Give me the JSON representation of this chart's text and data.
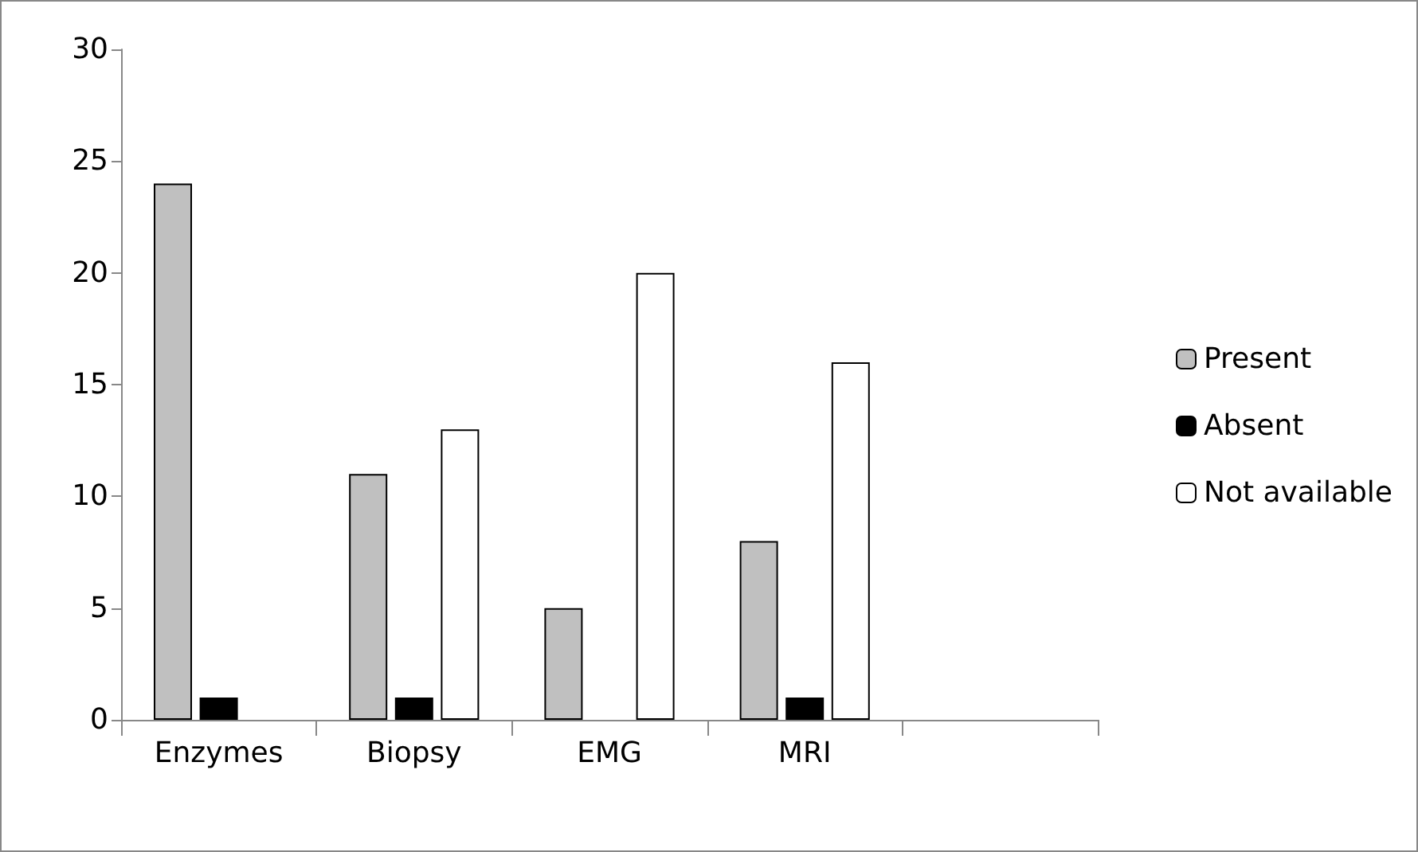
{
  "chart_data": {
    "type": "bar",
    "categories": [
      "Enzymes",
      "Biopsy",
      "EMG",
      "MRI",
      null
    ],
    "series": [
      {
        "name": "Present",
        "color": "#c0c0c0",
        "values": [
          24,
          11,
          5,
          8,
          null
        ]
      },
      {
        "name": "Absent",
        "color": "#000000",
        "values": [
          1,
          1,
          null,
          1,
          null
        ]
      },
      {
        "name": "Not available",
        "color": "#ffffff",
        "values": [
          null,
          13,
          20,
          16,
          null
        ]
      }
    ],
    "ylim": [
      0,
      30
    ],
    "yticks": [
      0,
      5,
      10,
      15,
      20,
      25,
      30
    ],
    "grid": false,
    "legend": "right"
  }
}
